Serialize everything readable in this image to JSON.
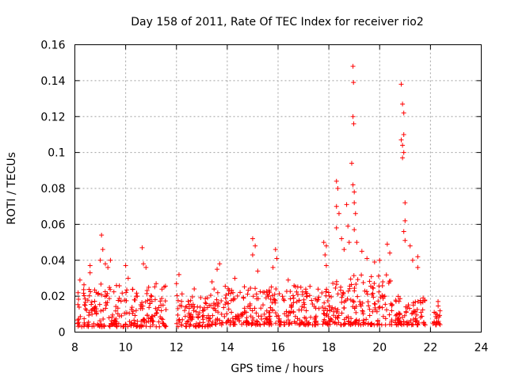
{
  "chart_data": {
    "type": "scatter",
    "title": "Day 158 of 2011, Rate Of TEC Index for receiver rio2",
    "xlabel": "GPS time / hours",
    "ylabel": "ROTI / TECUs",
    "xlim": [
      8,
      24
    ],
    "ylim": [
      0,
      0.16
    ],
    "xticks": [
      "8",
      "10",
      "12",
      "14",
      "16",
      "18",
      "20",
      "22",
      "24"
    ],
    "yticks": [
      "0",
      "0.02",
      "0.04",
      "0.06",
      "0.08",
      "0.1",
      "0.12",
      "0.14",
      "0.16"
    ],
    "grid": true,
    "marker": "+",
    "color": "#ff0000",
    "clusters": [
      {
        "x": [
          8.1,
          9.4
        ],
        "y": [
          0.003,
          0.028
        ]
      },
      {
        "x": [
          9.4,
          11.6
        ],
        "y": [
          0.003,
          0.026
        ]
      },
      {
        "x": [
          12.0,
          13.4
        ],
        "y": [
          0.003,
          0.022
        ]
      },
      {
        "x": [
          13.4,
          17.5
        ],
        "y": [
          0.004,
          0.026
        ]
      },
      {
        "x": [
          17.5,
          18.8
        ],
        "y": [
          0.004,
          0.03
        ]
      },
      {
        "x": [
          18.8,
          20.5
        ],
        "y": [
          0.004,
          0.032
        ]
      },
      {
        "x": [
          20.6,
          21.8
        ],
        "y": [
          0.004,
          0.02
        ]
      },
      {
        "x": [
          22.1,
          22.4
        ],
        "y": [
          0.004,
          0.016
        ]
      }
    ],
    "highlights": [
      {
        "x": 8.2,
        "y": 0.029
      },
      {
        "x": 8.6,
        "y": 0.033
      },
      {
        "x": 8.6,
        "y": 0.037
      },
      {
        "x": 9.05,
        "y": 0.054
      },
      {
        "x": 9.1,
        "y": 0.046
      },
      {
        "x": 9.0,
        "y": 0.04
      },
      {
        "x": 9.2,
        "y": 0.038
      },
      {
        "x": 9.3,
        "y": 0.036
      },
      {
        "x": 9.4,
        "y": 0.04
      },
      {
        "x": 10.0,
        "y": 0.037
      },
      {
        "x": 10.1,
        "y": 0.03
      },
      {
        "x": 10.65,
        "y": 0.047
      },
      {
        "x": 10.7,
        "y": 0.038
      },
      {
        "x": 10.8,
        "y": 0.036
      },
      {
        "x": 11.2,
        "y": 0.027
      },
      {
        "x": 12.0,
        "y": 0.027
      },
      {
        "x": 12.1,
        "y": 0.032
      },
      {
        "x": 12.7,
        "y": 0.024
      },
      {
        "x": 13.4,
        "y": 0.028
      },
      {
        "x": 13.7,
        "y": 0.038
      },
      {
        "x": 13.6,
        "y": 0.035
      },
      {
        "x": 14.3,
        "y": 0.03
      },
      {
        "x": 15.0,
        "y": 0.052
      },
      {
        "x": 15.1,
        "y": 0.048
      },
      {
        "x": 15.0,
        "y": 0.043
      },
      {
        "x": 15.2,
        "y": 0.034
      },
      {
        "x": 15.9,
        "y": 0.046
      },
      {
        "x": 15.95,
        "y": 0.041
      },
      {
        "x": 15.8,
        "y": 0.036
      },
      {
        "x": 16.4,
        "y": 0.029
      },
      {
        "x": 17.8,
        "y": 0.05
      },
      {
        "x": 17.9,
        "y": 0.048
      },
      {
        "x": 17.85,
        "y": 0.043
      },
      {
        "x": 17.9,
        "y": 0.037
      },
      {
        "x": 18.3,
        "y": 0.084
      },
      {
        "x": 18.35,
        "y": 0.08
      },
      {
        "x": 18.3,
        "y": 0.07
      },
      {
        "x": 18.4,
        "y": 0.066
      },
      {
        "x": 18.3,
        "y": 0.058
      },
      {
        "x": 18.5,
        "y": 0.052
      },
      {
        "x": 18.6,
        "y": 0.046
      },
      {
        "x": 18.7,
        "y": 0.071
      },
      {
        "x": 18.75,
        "y": 0.059
      },
      {
        "x": 18.8,
        "y": 0.05
      },
      {
        "x": 18.95,
        "y": 0.148
      },
      {
        "x": 18.97,
        "y": 0.139
      },
      {
        "x": 18.95,
        "y": 0.12
      },
      {
        "x": 18.98,
        "y": 0.116
      },
      {
        "x": 18.9,
        "y": 0.094
      },
      {
        "x": 18.95,
        "y": 0.082
      },
      {
        "x": 19.0,
        "y": 0.078
      },
      {
        "x": 19.0,
        "y": 0.072
      },
      {
        "x": 19.05,
        "y": 0.066
      },
      {
        "x": 19.0,
        "y": 0.057
      },
      {
        "x": 19.1,
        "y": 0.05
      },
      {
        "x": 19.3,
        "y": 0.045
      },
      {
        "x": 19.5,
        "y": 0.041
      },
      {
        "x": 19.8,
        "y": 0.039
      },
      {
        "x": 20.0,
        "y": 0.04
      },
      {
        "x": 20.3,
        "y": 0.049
      },
      {
        "x": 20.4,
        "y": 0.044
      },
      {
        "x": 20.85,
        "y": 0.138
      },
      {
        "x": 20.9,
        "y": 0.127
      },
      {
        "x": 20.95,
        "y": 0.122
      },
      {
        "x": 20.95,
        "y": 0.11
      },
      {
        "x": 20.85,
        "y": 0.107
      },
      {
        "x": 20.9,
        "y": 0.104
      },
      {
        "x": 20.95,
        "y": 0.1
      },
      {
        "x": 20.9,
        "y": 0.097
      },
      {
        "x": 21.0,
        "y": 0.072
      },
      {
        "x": 21.0,
        "y": 0.062
      },
      {
        "x": 20.95,
        "y": 0.056
      },
      {
        "x": 21.0,
        "y": 0.051
      },
      {
        "x": 21.2,
        "y": 0.048
      },
      {
        "x": 21.3,
        "y": 0.04
      },
      {
        "x": 21.5,
        "y": 0.042
      },
      {
        "x": 22.3,
        "y": 0.017
      },
      {
        "x": 21.5,
        "y": 0.036
      }
    ]
  }
}
